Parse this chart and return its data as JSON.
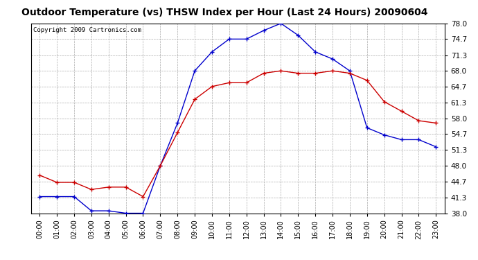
{
  "title": "Outdoor Temperature (vs) THSW Index per Hour (Last 24 Hours) 20090604",
  "copyright": "Copyright 2009 Cartronics.com",
  "hours": [
    "00:00",
    "01:00",
    "02:00",
    "03:00",
    "04:00",
    "05:00",
    "06:00",
    "07:00",
    "08:00",
    "09:00",
    "10:00",
    "11:00",
    "12:00",
    "13:00",
    "14:00",
    "15:00",
    "16:00",
    "17:00",
    "18:00",
    "19:00",
    "20:00",
    "21:00",
    "22:00",
    "23:00"
  ],
  "temp_red": [
    46.0,
    44.5,
    44.5,
    43.0,
    43.5,
    43.5,
    41.5,
    48.0,
    55.0,
    62.0,
    64.7,
    65.5,
    65.5,
    67.5,
    68.0,
    67.5,
    67.5,
    68.0,
    67.5,
    66.0,
    61.5,
    59.5,
    57.5,
    57.0
  ],
  "thsw_blue": [
    41.5,
    41.5,
    41.5,
    38.5,
    38.5,
    38.0,
    38.0,
    48.0,
    57.0,
    68.0,
    72.0,
    74.7,
    74.7,
    76.5,
    78.0,
    75.5,
    72.0,
    70.5,
    68.0,
    56.0,
    54.5,
    53.5,
    53.5,
    52.0
  ],
  "ylim": [
    38.0,
    78.0
  ],
  "yticks": [
    38.0,
    41.3,
    44.7,
    48.0,
    51.3,
    54.7,
    58.0,
    61.3,
    64.7,
    68.0,
    71.3,
    74.7,
    78.0
  ],
  "red_color": "#cc0000",
  "blue_color": "#0000cc",
  "bg_color": "#ffffff",
  "grid_color": "#aaaaaa",
  "title_fontsize": 10,
  "copyright_fontsize": 6.5
}
